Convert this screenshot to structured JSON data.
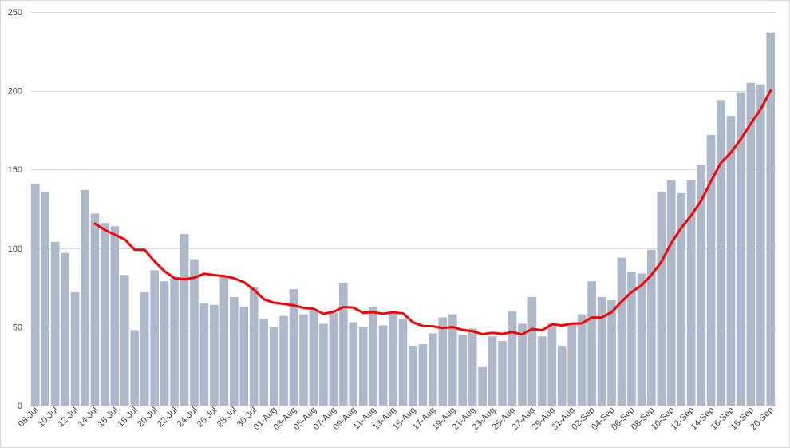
{
  "chart_data": {
    "type": "bar",
    "title": "",
    "xlabel": "",
    "ylabel": "",
    "ylim": [
      0,
      250
    ],
    "yticks": [
      0,
      50,
      100,
      150,
      200,
      250
    ],
    "grid": true,
    "legend": "none",
    "categories": [
      "08-Jul",
      "09-Jul",
      "10-Jul",
      "11-Jul",
      "12-Jul",
      "13-Jul",
      "14-Jul",
      "15-Jul",
      "16-Jul",
      "17-Jul",
      "18-Jul",
      "19-Jul",
      "20-Jul",
      "21-Jul",
      "22-Jul",
      "23-Jul",
      "24-Jul",
      "25-Jul",
      "26-Jul",
      "27-Jul",
      "28-Jul",
      "29-Jul",
      "30-Jul",
      "31-Jul",
      "01-Aug",
      "02-Aug",
      "03-Aug",
      "04-Aug",
      "05-Aug",
      "06-Aug",
      "07-Aug",
      "08-Aug",
      "09-Aug",
      "10-Aug",
      "11-Aug",
      "12-Aug",
      "13-Aug",
      "14-Aug",
      "15-Aug",
      "16-Aug",
      "17-Aug",
      "18-Aug",
      "19-Aug",
      "20-Aug",
      "21-Aug",
      "22-Aug",
      "23-Aug",
      "24-Aug",
      "25-Aug",
      "26-Aug",
      "27-Aug",
      "28-Aug",
      "29-Aug",
      "30-Aug",
      "31-Aug",
      "01-Sep",
      "02-Sep",
      "03-Sep",
      "04-Sep",
      "05-Sep",
      "06-Sep",
      "07-Sep",
      "08-Sep",
      "09-Sep",
      "10-Sep",
      "11-Sep",
      "12-Sep",
      "13-Sep",
      "14-Sep",
      "15-Sep",
      "16-Sep",
      "17-Sep",
      "18-Sep",
      "19-Sep",
      "20-Sep"
    ],
    "xtick_labels": [
      "08-Jul",
      "10-Jul",
      "12-Jul",
      "14-Jul",
      "16-Jul",
      "18-Jul",
      "20-Jul",
      "22-Jul",
      "24-Jul",
      "26-Jul",
      "28-Jul",
      "30-Jul",
      "01-Aug",
      "03-Aug",
      "05-Aug",
      "07-Aug",
      "09-Aug",
      "11-Aug",
      "13-Aug",
      "15-Aug",
      "17-Aug",
      "19-Aug",
      "21-Aug",
      "23-Aug",
      "25-Aug",
      "27-Aug",
      "29-Aug",
      "31-Aug",
      "02-Sep",
      "04-Sep",
      "06-Sep",
      "08-Sep",
      "10-Sep",
      "12-Sep",
      "14-Sep",
      "16-Sep",
      "18-Sep",
      "20-Sep"
    ],
    "series": [
      {
        "type": "bar",
        "color": "#adb9ca",
        "values": [
          141,
          136,
          104,
          97,
          72,
          137,
          122,
          116,
          114,
          83,
          48,
          72,
          86,
          79,
          81,
          109,
          93,
          65,
          64,
          82,
          69,
          63,
          75,
          55,
          50,
          57,
          74,
          58,
          60,
          52,
          59,
          78,
          53,
          50,
          63,
          51,
          59,
          55,
          38,
          39,
          46,
          56,
          58,
          45,
          49,
          25,
          44,
          41,
          60,
          52,
          69,
          44,
          52,
          38,
          52,
          58,
          79,
          69,
          67,
          94,
          85,
          84,
          99,
          136,
          143,
          135,
          143,
          153,
          172,
          194,
          184,
          199,
          205,
          204,
          237
        ]
      },
      {
        "type": "line",
        "color": "#ff0000",
        "values": [
          null,
          null,
          null,
          null,
          null,
          null,
          115.6,
          111.6,
          108.6,
          105.6,
          99,
          99,
          91.7,
          85.4,
          81,
          80.3,
          81.3,
          83.8,
          82.9,
          82.3,
          80.9,
          78.4,
          73.6,
          67.6,
          65.4,
          64.6,
          63.7,
          62.1,
          61.5,
          58.3,
          59.6,
          62.6,
          62.3,
          59,
          59.3,
          58.4,
          59.3,
          58.6,
          52.9,
          50.6,
          50.4,
          49.3,
          49.9,
          48.1,
          47.3,
          45.4,
          46.3,
          45.6,
          46.7,
          45.3,
          48.7,
          47.9,
          51.7,
          50.9,
          52.1,
          52.3,
          56,
          56,
          59.4,
          66.1,
          72.1,
          76.4,
          83,
          91.4,
          103.3,
          112.9,
          120.8,
          130.1,
          142.6,
          154.3,
          160.7,
          169.4,
          179.1,
          188.3,
          200.1
        ]
      }
    ]
  }
}
